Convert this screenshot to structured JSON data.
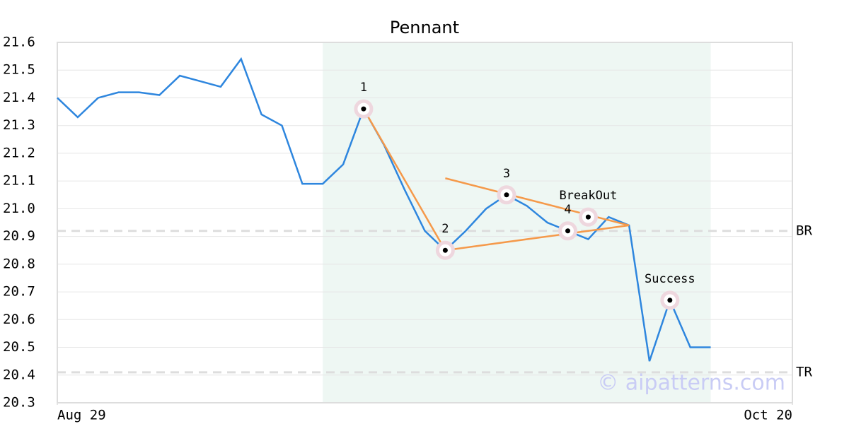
{
  "chart_data": {
    "type": "line",
    "title": "Pennant",
    "x": [
      0,
      1,
      2,
      3,
      4,
      5,
      6,
      7,
      8,
      9,
      10,
      11,
      12,
      13,
      14,
      15,
      16,
      17,
      18,
      19,
      20,
      21,
      22,
      23,
      24,
      25,
      26,
      27,
      28,
      29,
      30,
      31,
      32
    ],
    "series": [
      {
        "color": "#2e86de",
        "values": [
          21.4,
          21.33,
          21.4,
          21.42,
          21.42,
          21.41,
          21.48,
          21.46,
          21.44,
          21.54,
          21.34,
          21.3,
          21.09,
          21.09,
          21.16,
          21.36,
          21.23,
          21.07,
          20.92,
          20.85,
          20.92,
          21.0,
          21.05,
          21.01,
          20.95,
          20.92,
          20.89,
          20.97,
          20.94,
          20.45,
          20.67,
          20.5,
          20.5
        ]
      }
    ],
    "xlim": [
      0,
      36
    ],
    "xticks": [
      {
        "value": 0,
        "label": "Aug 29"
      },
      {
        "value": 36,
        "label": "Oct 20"
      }
    ],
    "ylim": [
      20.3,
      21.6
    ],
    "yticks": [
      20.3,
      20.4,
      20.5,
      20.6,
      20.7,
      20.8,
      20.9,
      {
        "value": 21,
        "label": "21.0"
      },
      21.1,
      21.2,
      21.3,
      21.4,
      21.5,
      21.6
    ],
    "grid": true,
    "shaded_region": {
      "x": [
        13,
        32
      ],
      "color": "#eef7f3"
    },
    "trend_lines": [
      {
        "color": "#f5994a",
        "x": [
          15,
          19
        ],
        "y": [
          21.36,
          20.85
        ]
      },
      {
        "color": "#f5994a",
        "x": [
          19,
          28
        ],
        "y": [
          21.11,
          20.94
        ]
      },
      {
        "color": "#f5994a",
        "x": [
          19,
          28
        ],
        "y": [
          20.85,
          20.94
        ]
      }
    ],
    "annotations": [
      {
        "label": "1",
        "x": 15,
        "y": 21.36
      },
      {
        "label": "2",
        "x": 19,
        "y": 20.85
      },
      {
        "label": "3",
        "x": 22,
        "y": 21.05
      },
      {
        "label": "4",
        "x": 25,
        "y": 20.92
      },
      {
        "label": "BreakOut",
        "x": 26,
        "y": 20.97
      },
      {
        "label": "Success",
        "x": 30,
        "y": 20.67
      }
    ],
    "levels": [
      {
        "label": "BR",
        "value": 20.92
      },
      {
        "label": "TR",
        "value": 20.41
      }
    ],
    "watermark": "© aipatterns.com"
  }
}
